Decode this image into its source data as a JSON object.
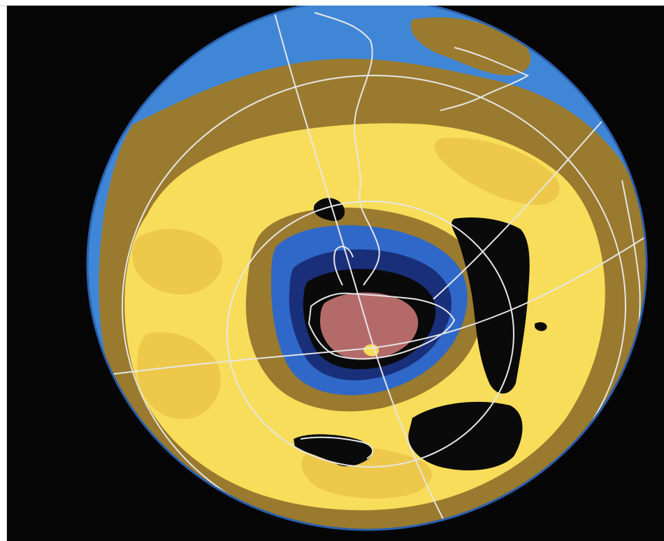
{
  "image": {
    "subject": "ozone-map-globe",
    "colors": {
      "background": "#050505",
      "ocean": "#3f86d6",
      "band_brown": "#9a7a2e",
      "band_yellow_light": "#f7dd5a",
      "band_yellow_mid": "#eec84a",
      "band_blue_mid": "#2f68c8",
      "band_navy": "#1a2f7a",
      "band_black": "#0a0a0a",
      "core_mauve": "#b56a6a",
      "grid_lines": "#e6e6e6"
    }
  }
}
